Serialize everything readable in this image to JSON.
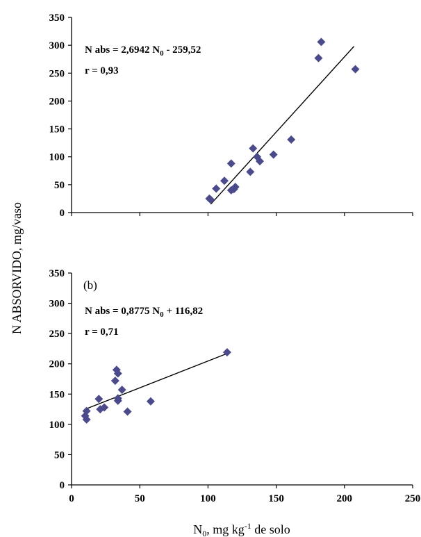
{
  "chart_data": [
    {
      "type": "scatter",
      "title": "",
      "panel_label": "",
      "equation_prefix": "N abs = 2,6942 N",
      "equation_sub": "0",
      "equation_suffix": " - 259,52",
      "r_text": "r = 0,93",
      "xlim": [
        0,
        250
      ],
      "ylim": [
        0,
        350
      ],
      "xticks": [
        "0",
        "50",
        "100",
        "150",
        "200",
        "250"
      ],
      "yticks": [
        "0",
        "50",
        "100",
        "150",
        "200",
        "250",
        "300",
        "350"
      ],
      "x_tick_labels_visible": false,
      "marker_color": "#4B4B8C",
      "trendline": {
        "x": [
          102,
          207
        ],
        "y": [
          15,
          298
        ]
      },
      "points": [
        {
          "x": 101,
          "y": 25
        },
        {
          "x": 102,
          "y": 23
        },
        {
          "x": 106,
          "y": 43
        },
        {
          "x": 112,
          "y": 57
        },
        {
          "x": 117,
          "y": 88
        },
        {
          "x": 117,
          "y": 40
        },
        {
          "x": 119,
          "y": 42
        },
        {
          "x": 120,
          "y": 46
        },
        {
          "x": 131,
          "y": 73
        },
        {
          "x": 133,
          "y": 115
        },
        {
          "x": 136,
          "y": 100
        },
        {
          "x": 138,
          "y": 92
        },
        {
          "x": 148,
          "y": 104
        },
        {
          "x": 161,
          "y": 131
        },
        {
          "x": 181,
          "y": 277
        },
        {
          "x": 183,
          "y": 306
        },
        {
          "x": 208,
          "y": 257
        }
      ]
    },
    {
      "type": "scatter",
      "title": "",
      "panel_label": "(b)",
      "equation_prefix": "N abs = 0,8775 N",
      "equation_sub": "0",
      "equation_suffix": " + 116,82",
      "r_text": "r = 0,71",
      "xlim": [
        0,
        250
      ],
      "ylim": [
        0,
        350
      ],
      "xticks": [
        "0",
        "50",
        "100",
        "150",
        "200",
        "250"
      ],
      "yticks": [
        "0",
        "50",
        "100",
        "150",
        "200",
        "250",
        "300",
        "350"
      ],
      "x_tick_labels_visible": true,
      "marker_color": "#4B4B8C",
      "trendline": {
        "x": [
          10,
          114
        ],
        "y": [
          125,
          217
        ]
      },
      "points": [
        {
          "x": 10,
          "y": 114
        },
        {
          "x": 11,
          "y": 108
        },
        {
          "x": 11,
          "y": 122
        },
        {
          "x": 20,
          "y": 142
        },
        {
          "x": 21,
          "y": 125
        },
        {
          "x": 24,
          "y": 128
        },
        {
          "x": 32,
          "y": 172
        },
        {
          "x": 33,
          "y": 190
        },
        {
          "x": 34,
          "y": 184
        },
        {
          "x": 34,
          "y": 139
        },
        {
          "x": 34,
          "y": 143
        },
        {
          "x": 37,
          "y": 157
        },
        {
          "x": 41,
          "y": 121
        },
        {
          "x": 58,
          "y": 138
        },
        {
          "x": 114,
          "y": 219
        }
      ]
    }
  ],
  "y_axis_label": "N ABSORVIDO,  mg/vaso",
  "x_axis_label_main": "N",
  "x_axis_label_sub": "0",
  "x_axis_label_mid": ",  mg kg",
  "x_axis_label_sup": "-1",
  "x_axis_label_end": " de solo"
}
